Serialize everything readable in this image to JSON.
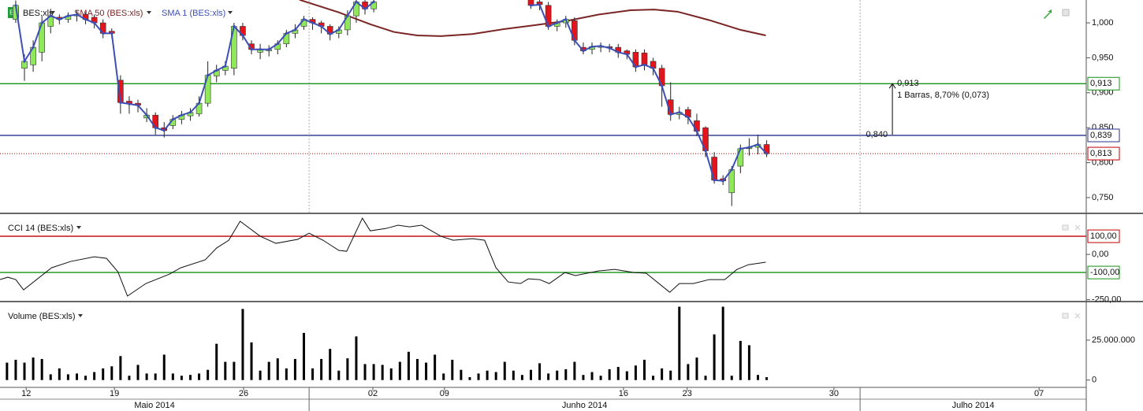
{
  "chart_data": [
    {
      "type": "candlestick",
      "name": "BES:xls",
      "open": [
        null,
        1.005,
        0.935,
        0.94,
        0.958,
        0.995,
        1.008,
        1.005,
        1.01,
        1.012,
        1.008,
        1.0,
        0.988,
        0.918,
        0.888,
        0.885,
        0.864,
        0.868,
        0.85,
        0.853,
        0.862,
        0.867,
        0.87,
        0.885,
        0.924,
        0.932,
        0.935,
        0.995,
        0.97,
        0.958,
        0.96,
        0.962,
        0.97,
        0.985,
        0.995,
        1.005,
        1.0,
        0.995,
        0.985,
        0.99,
        1.01,
        1.03,
        1.02,
        null,
        null,
        null,
        null,
        null,
        null,
        null,
        null,
        null,
        null,
        null,
        null,
        null,
        null,
        null,
        null,
        null,
        1.035,
        1.03,
        1.025,
        0.995,
        1.0,
        1.003,
        0.965,
        0.962,
        0.965,
        0.966,
        0.965,
        0.96,
        0.958,
        0.957,
        0.945,
        0.935,
        0.89,
        0.869,
        0.876,
        0.86,
        0.85,
        0.808,
        0.777,
        0.757,
        0.795,
        0.82,
        0.822,
        0.826
      ],
      "high": [
        null,
        1.032,
        0.955,
        0.975,
        1.01,
        1.02,
        1.012,
        1.015,
        1.018,
        1.015,
        1.012,
        1.005,
        0.992,
        0.925,
        0.895,
        0.89,
        0.878,
        0.872,
        0.858,
        0.868,
        0.874,
        0.878,
        0.895,
        0.945,
        0.94,
        0.945,
        1.0,
        1.0,
        0.975,
        0.97,
        0.968,
        0.975,
        0.99,
        0.998,
        1.01,
        1.008,
        1.003,
        0.998,
        0.995,
        1.018,
        1.035,
        1.035,
        1.035,
        null,
        null,
        null,
        null,
        null,
        null,
        null,
        null,
        null,
        null,
        null,
        null,
        null,
        null,
        null,
        null,
        null,
        1.04,
        1.034,
        1.03,
        1.005,
        1.01,
        1.008,
        0.972,
        0.972,
        0.972,
        0.97,
        0.97,
        0.962,
        0.962,
        0.962,
        0.95,
        0.94,
        0.915,
        0.88,
        0.88,
        0.87,
        0.852,
        0.815,
        0.782,
        0.795,
        0.826,
        0.835,
        0.84,
        0.832
      ],
      "low": [
        null,
        1.0,
        0.917,
        0.93,
        0.945,
        0.985,
        0.998,
        1.0,
        1.002,
        0.998,
        0.992,
        0.978,
        0.978,
        0.87,
        0.87,
        0.872,
        0.858,
        0.84,
        0.836,
        0.848,
        0.855,
        0.86,
        0.866,
        0.88,
        0.915,
        0.925,
        0.925,
        0.975,
        0.955,
        0.948,
        0.952,
        0.955,
        0.965,
        0.978,
        0.99,
        0.99,
        0.985,
        0.975,
        0.978,
        0.982,
        1.0,
        1.012,
        1.015,
        null,
        null,
        null,
        null,
        null,
        null,
        null,
        null,
        null,
        null,
        null,
        null,
        null,
        null,
        null,
        null,
        null,
        1.02,
        1.018,
        0.99,
        0.988,
        0.993,
        0.968,
        0.955,
        0.955,
        0.958,
        0.958,
        0.95,
        0.948,
        0.93,
        0.932,
        0.925,
        0.88,
        0.86,
        0.862,
        0.855,
        0.838,
        0.808,
        0.77,
        0.768,
        0.738,
        0.785,
        0.81,
        0.812,
        0.808
      ],
      "close": [
        null,
        1.025,
        0.945,
        0.965,
        1.0,
        1.01,
        1.005,
        1.01,
        1.012,
        1.005,
        1.0,
        0.985,
        0.985,
        0.886,
        0.884,
        0.882,
        0.868,
        0.85,
        0.846,
        0.862,
        0.868,
        0.872,
        0.885,
        0.925,
        0.932,
        0.938,
        0.995,
        0.982,
        0.962,
        0.962,
        0.962,
        0.97,
        0.985,
        0.99,
        1.005,
        1.0,
        0.995,
        0.984,
        0.99,
        1.01,
        1.03,
        1.02,
        1.03,
        null,
        null,
        null,
        null,
        null,
        null,
        null,
        null,
        null,
        null,
        null,
        null,
        null,
        null,
        null,
        null,
        null,
        1.025,
        1.026,
        0.995,
        1.0,
        1.005,
        0.975,
        0.96,
        0.966,
        0.967,
        0.964,
        0.958,
        0.955,
        0.937,
        0.94,
        0.935,
        0.91,
        0.869,
        0.872,
        0.865,
        0.845,
        0.817,
        0.775,
        0.774,
        0.79,
        0.82,
        0.822,
        0.826,
        0.813
      ],
      "up_color": "#8ee85a",
      "down_color": "#e3141b",
      "series": [
        {
          "name": "SMA 50 (BES:xls)",
          "color": "#7a2424",
          "x": [
            33.5,
            38.0,
            41.6,
            44.3,
            47.0,
            49.7,
            53.3,
            56.9,
            60.6,
            64.2,
            67.8,
            71.4,
            74.1,
            76.8,
            80.4,
            84.0,
            86.9
          ],
          "values": [
            1.033,
            1.015,
            0.998,
            0.987,
            0.982,
            0.981,
            0.984,
            0.991,
            0.997,
            1.003,
            1.012,
            1.018,
            1.019,
            1.016,
            1.004,
            0.99,
            0.982
          ]
        },
        {
          "name": "SMA 1 (BES:xls)",
          "color": "#3c4fb4"
        }
      ],
      "hlines": [
        {
          "value": 0.913,
          "label": "0,913",
          "color": "#139313",
          "style": "solid"
        },
        {
          "value": 0.839,
          "label": "0,839",
          "color": "#26338a",
          "style": "solid"
        },
        {
          "value": 0.813,
          "label": "0,813",
          "color": "#c00000",
          "style": "dotted"
        }
      ],
      "annotation": {
        "x": 101.4,
        "from": {
          "value": 0.84,
          "label": "0,840"
        },
        "to": {
          "value": 0.913,
          "label": "0,913"
        },
        "text": "1 Barras, 8,70% (0,073)"
      },
      "ylim": [
        0.7286,
        1.0327
      ],
      "yticks": [
        {
          "value": 1.0,
          "label": "1,000"
        },
        {
          "value": 0.95,
          "label": "0,950"
        },
        {
          "value": 0.9,
          "label": "0,900"
        },
        {
          "value": 0.85,
          "label": "0,850"
        },
        {
          "value": 0.8,
          "label": "0,800"
        },
        {
          "value": 0.75,
          "label": "0,750"
        }
      ],
      "xlim": [
        -0.8,
        123.6
      ],
      "xticks": [
        {
          "value": 2.2,
          "label": "12"
        },
        {
          "value": 12.3,
          "label": "19"
        },
        {
          "value": 27.1,
          "label": "26"
        },
        {
          "value": 41.9,
          "label": "02"
        },
        {
          "value": 50.1,
          "label": "09"
        },
        {
          "value": 70.6,
          "label": "16"
        },
        {
          "value": 77.9,
          "label": "23"
        },
        {
          "value": 94.7,
          "label": "30"
        },
        {
          "value": 118.2,
          "label": "07"
        }
      ],
      "months": [
        "Maio 2014",
        "Junho 2014",
        "Julho 2014"
      ],
      "month_starts": [
        34.6,
        97.7
      ]
    },
    {
      "type": "line",
      "name": "CCI 14 (BES:xls)",
      "color": "#111111",
      "x": [
        -0.8,
        0.1,
        1.0,
        1.9,
        5.1,
        7.3,
        10.0,
        11.4,
        12.7,
        13.8,
        15.9,
        18.6,
        19.9,
        22.7,
        24.0,
        25.4,
        26.7,
        29.0,
        30.8,
        33.3,
        34.6,
        36.2,
        38.0,
        38.9,
        40.7,
        41.6,
        43.4,
        44.8,
        46.1,
        47.5,
        49.7,
        51.1,
        53.3,
        54.7,
        56.0,
        57.4,
        58.8,
        59.7,
        61.0,
        62.1,
        63.9,
        65.1,
        67.8,
        69.6,
        71.8,
        73.2,
        75.9,
        77.0,
        78.6,
        80.4,
        82.2,
        83.6,
        84.9,
        86.9
      ],
      "values": [
        -139,
        -126,
        -139,
        -196,
        -74,
        -39,
        -13,
        -22,
        -96,
        -230,
        -161,
        -109,
        -74,
        -30,
        35,
        78,
        183,
        100,
        61,
        83,
        117,
        78,
        22,
        17,
        200,
        130,
        143,
        161,
        152,
        161,
        100,
        78,
        87,
        78,
        -74,
        -152,
        -161,
        -135,
        -139,
        -161,
        -100,
        -117,
        -91,
        -83,
        -100,
        -104,
        -209,
        -161,
        -161,
        -139,
        -139,
        -83,
        -57,
        -43
      ],
      "hlines": [
        {
          "value": 100,
          "label": "100,00",
          "color": "#c00000"
        },
        {
          "value": -100,
          "label": "-100,00",
          "color": "#139313"
        }
      ],
      "ylim": [
        -256,
        222
      ],
      "yticks": [
        {
          "value": 0,
          "label": "0,00"
        },
        {
          "value": -250,
          "label": "-250,00"
        }
      ]
    },
    {
      "type": "bar",
      "name": "Volume (BES:xls)",
      "color": "#000000",
      "values": [
        10900000,
        12700000,
        10900000,
        14100000,
        13200000,
        3600000,
        7300000,
        3600000,
        4100000,
        2700000,
        5000000,
        7300000,
        8600000,
        15000000,
        2700000,
        9500000,
        4100000,
        4100000,
        15900000,
        4100000,
        2700000,
        3200000,
        4100000,
        6400000,
        22700000,
        11400000,
        11400000,
        44500000,
        23600000,
        5900000,
        11400000,
        13600000,
        7300000,
        13200000,
        29500000,
        7300000,
        13200000,
        19500000,
        5900000,
        13600000,
        27300000,
        10000000,
        10000000,
        9500000,
        7300000,
        11400000,
        17700000,
        13200000,
        10900000,
        15900000,
        4100000,
        12700000,
        6400000,
        1800000,
        4100000,
        5900000,
        5000000,
        11400000,
        5900000,
        3200000,
        6400000,
        10500000,
        4100000,
        5900000,
        6800000,
        11400000,
        3200000,
        5000000,
        2700000,
        6800000,
        8200000,
        5500000,
        9100000,
        12700000,
        2700000,
        7300000,
        5900000,
        45900000,
        10000000,
        14100000,
        2700000,
        28600000,
        45900000,
        2700000,
        24500000,
        21800000,
        3200000,
        1800000
      ],
      "ylim": [
        -4090000,
        48640000
      ],
      "yticks": [
        0,
        {
          "value": 25000000,
          "label": "25.000.000"
        }
      ]
    }
  ]
}
